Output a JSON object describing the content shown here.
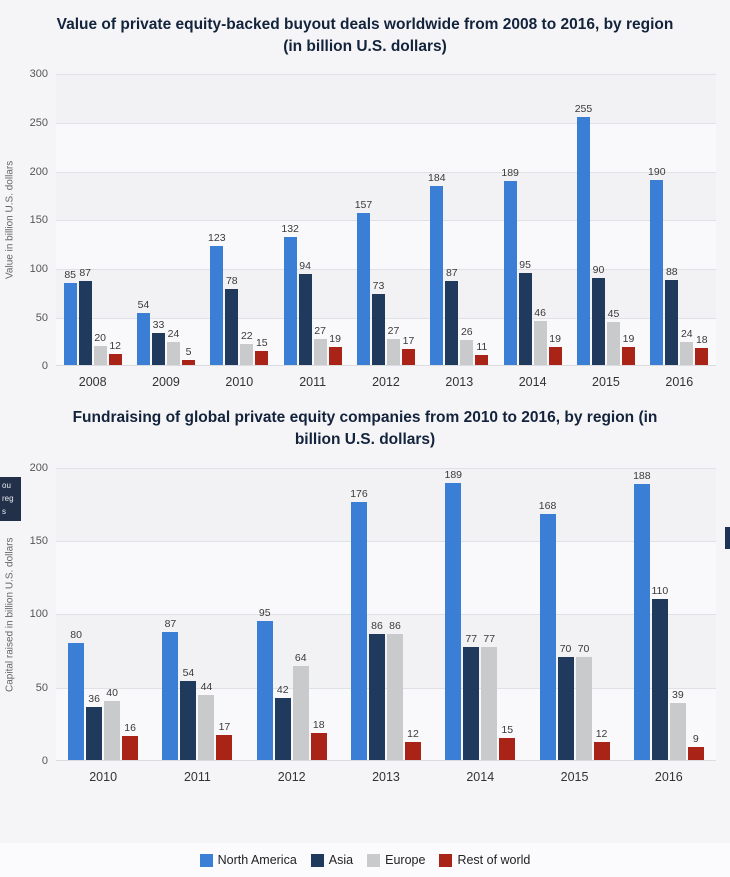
{
  "page": {
    "background": "#f5f5f7"
  },
  "chart_data": [
    {
      "type": "bar",
      "title": "Value of private equity-backed buyout deals worldwide from 2008 to 2016, by region (in billion U.S. dollars)",
      "ylabel": "Value in billion U.S. dollars",
      "xlabel": "",
      "categories": [
        "2008",
        "2009",
        "2010",
        "2011",
        "2012",
        "2013",
        "2014",
        "2015",
        "2016"
      ],
      "series": [
        {
          "name": "North America",
          "color": "#3a7fd5",
          "values": [
            85,
            54,
            123,
            132,
            157,
            184,
            189,
            255,
            190
          ]
        },
        {
          "name": "Asia",
          "color": "#1f3a5c",
          "values": [
            87,
            33,
            78,
            94,
            73,
            87,
            95,
            90,
            88
          ]
        },
        {
          "name": "Europe",
          "color": "#c9cacc",
          "values": [
            20,
            24,
            22,
            27,
            27,
            26,
            46,
            45,
            24
          ]
        },
        {
          "name": "Rest of world",
          "color": "#aa2317",
          "values": [
            12,
            5,
            15,
            19,
            17,
            11,
            19,
            19,
            18
          ]
        }
      ],
      "ylim": [
        0,
        300
      ],
      "yticks": [
        0,
        50,
        100,
        150,
        200,
        250,
        300
      ],
      "grid": true,
      "legend_position": "shared-bottom"
    },
    {
      "type": "bar",
      "title": "Fundraising of global private equity companies from 2010 to 2016, by region (in billion U.S. dollars)",
      "ylabel": "Capital raised in billion U.S. dollars",
      "xlabel": "",
      "categories": [
        "2010",
        "2011",
        "2012",
        "2013",
        "2014",
        "2015",
        "2016"
      ],
      "series": [
        {
          "name": "North America",
          "color": "#3a7fd5",
          "values": [
            80,
            87,
            95,
            176,
            189,
            168,
            188
          ]
        },
        {
          "name": "Asia",
          "color": "#1f3a5c",
          "values": [
            36,
            54,
            42,
            86,
            77,
            70,
            110
          ]
        },
        {
          "name": "Europe",
          "color": "#c9cacc",
          "values": [
            40,
            44,
            64,
            86,
            77,
            70,
            39
          ]
        },
        {
          "name": "Rest of world",
          "color": "#aa2317",
          "values": [
            16,
            17,
            18,
            12,
            15,
            12,
            9
          ]
        }
      ],
      "ylim": [
        0,
        200
      ],
      "yticks": [
        0,
        50,
        100,
        150,
        200
      ],
      "grid": true,
      "legend_position": "shared-bottom"
    }
  ],
  "legend": {
    "items": [
      {
        "label": "North America",
        "color": "#3a7fd5"
      },
      {
        "label": "Asia",
        "color": "#1f3a5c"
      },
      {
        "label": "Europe",
        "color": "#c9cacc"
      },
      {
        "label": "Rest of world",
        "color": "#aa2317"
      }
    ]
  },
  "artifacts": {
    "left_clipped_lines": [
      "ou",
      "reg",
      "s"
    ]
  }
}
